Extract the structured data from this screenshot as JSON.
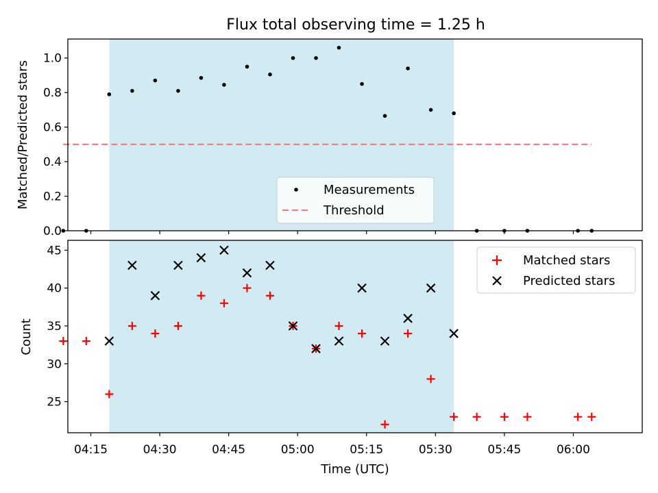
{
  "figure": {
    "title": "Flux total observing time = 1.25 h"
  },
  "chart_data": [
    {
      "type": "scatter",
      "panel": "top",
      "ylabel": "Matched/Predicted stars",
      "ylim": [
        0,
        1.11
      ],
      "yticks": [
        "0.0",
        "0.2",
        "0.4",
        "0.6",
        "0.8",
        "1.0"
      ],
      "xlim_minutes_utc": [
        250,
        375
      ],
      "shaded_interval": [
        "04:19",
        "05:34"
      ],
      "shaded_color": "#add8e6",
      "legend_position": "lower center",
      "series": [
        {
          "name": "Measurements",
          "marker": "dot",
          "color": "#000000",
          "points": [
            [
              "04:09",
              0.0
            ],
            [
              "04:14",
              0.0
            ],
            [
              "04:19",
              0.79
            ],
            [
              "04:24",
              0.81
            ],
            [
              "04:29",
              0.87
            ],
            [
              "04:34",
              0.81
            ],
            [
              "04:39",
              0.885
            ],
            [
              "04:44",
              0.845
            ],
            [
              "04:49",
              0.95
            ],
            [
              "04:54",
              0.905
            ],
            [
              "04:59",
              1.0
            ],
            [
              "05:04",
              1.0
            ],
            [
              "05:09",
              1.06
            ],
            [
              "05:14",
              0.85
            ],
            [
              "05:19",
              0.665
            ],
            [
              "05:24",
              0.94
            ],
            [
              "05:29",
              0.7
            ],
            [
              "05:34",
              0.68
            ],
            [
              "05:39",
              0.0
            ],
            [
              "05:45",
              0.0
            ],
            [
              "05:50",
              0.0
            ],
            [
              "06:01",
              0.0
            ],
            [
              "06:04",
              0.0
            ]
          ]
        },
        {
          "name": "Threshold",
          "marker": "dashed-line",
          "color": "#f08080",
          "points": [
            [
              "04:09",
              0.5
            ],
            [
              "06:04",
              0.5
            ]
          ]
        }
      ]
    },
    {
      "type": "scatter",
      "panel": "bottom",
      "xlabel": "Time (UTC)",
      "ylabel": "Count",
      "ylim": [
        20.9,
        46.3
      ],
      "yticks": [
        "25",
        "30",
        "35",
        "40",
        "45"
      ],
      "xticks": [
        "04:15",
        "04:30",
        "04:45",
        "05:00",
        "05:15",
        "05:30",
        "05:45",
        "06:00"
      ],
      "xlim_minutes_utc": [
        250,
        375
      ],
      "shaded_interval": [
        "04:19",
        "05:34"
      ],
      "shaded_color": "#add8e6",
      "legend_position": "upper right",
      "series": [
        {
          "name": "Matched stars",
          "marker": "plus",
          "color": "#ff0000",
          "points": [
            [
              "04:09",
              33
            ],
            [
              "04:14",
              33
            ],
            [
              "04:19",
              26
            ],
            [
              "04:24",
              35
            ],
            [
              "04:29",
              34
            ],
            [
              "04:34",
              35
            ],
            [
              "04:39",
              39
            ],
            [
              "04:44",
              38
            ],
            [
              "04:49",
              40
            ],
            [
              "04:54",
              39
            ],
            [
              "04:59",
              35
            ],
            [
              "05:04",
              32
            ],
            [
              "05:09",
              35
            ],
            [
              "05:14",
              34
            ],
            [
              "05:19",
              22
            ],
            [
              "05:24",
              34
            ],
            [
              "05:29",
              28
            ],
            [
              "05:34",
              23
            ],
            [
              "05:39",
              23
            ],
            [
              "05:45",
              23
            ],
            [
              "05:50",
              23
            ],
            [
              "06:01",
              23
            ],
            [
              "06:04",
              23
            ]
          ]
        },
        {
          "name": "Predicted stars",
          "marker": "x",
          "color": "#000000",
          "points": [
            [
              "04:19",
              33
            ],
            [
              "04:24",
              43
            ],
            [
              "04:29",
              39
            ],
            [
              "04:34",
              43
            ],
            [
              "04:39",
              44
            ],
            [
              "04:44",
              45
            ],
            [
              "04:49",
              42
            ],
            [
              "04:54",
              43
            ],
            [
              "04:59",
              35
            ],
            [
              "05:04",
              32
            ],
            [
              "05:09",
              33
            ],
            [
              "05:14",
              40
            ],
            [
              "05:19",
              33
            ],
            [
              "05:24",
              36
            ],
            [
              "05:29",
              40
            ],
            [
              "05:34",
              34
            ]
          ]
        }
      ]
    }
  ]
}
